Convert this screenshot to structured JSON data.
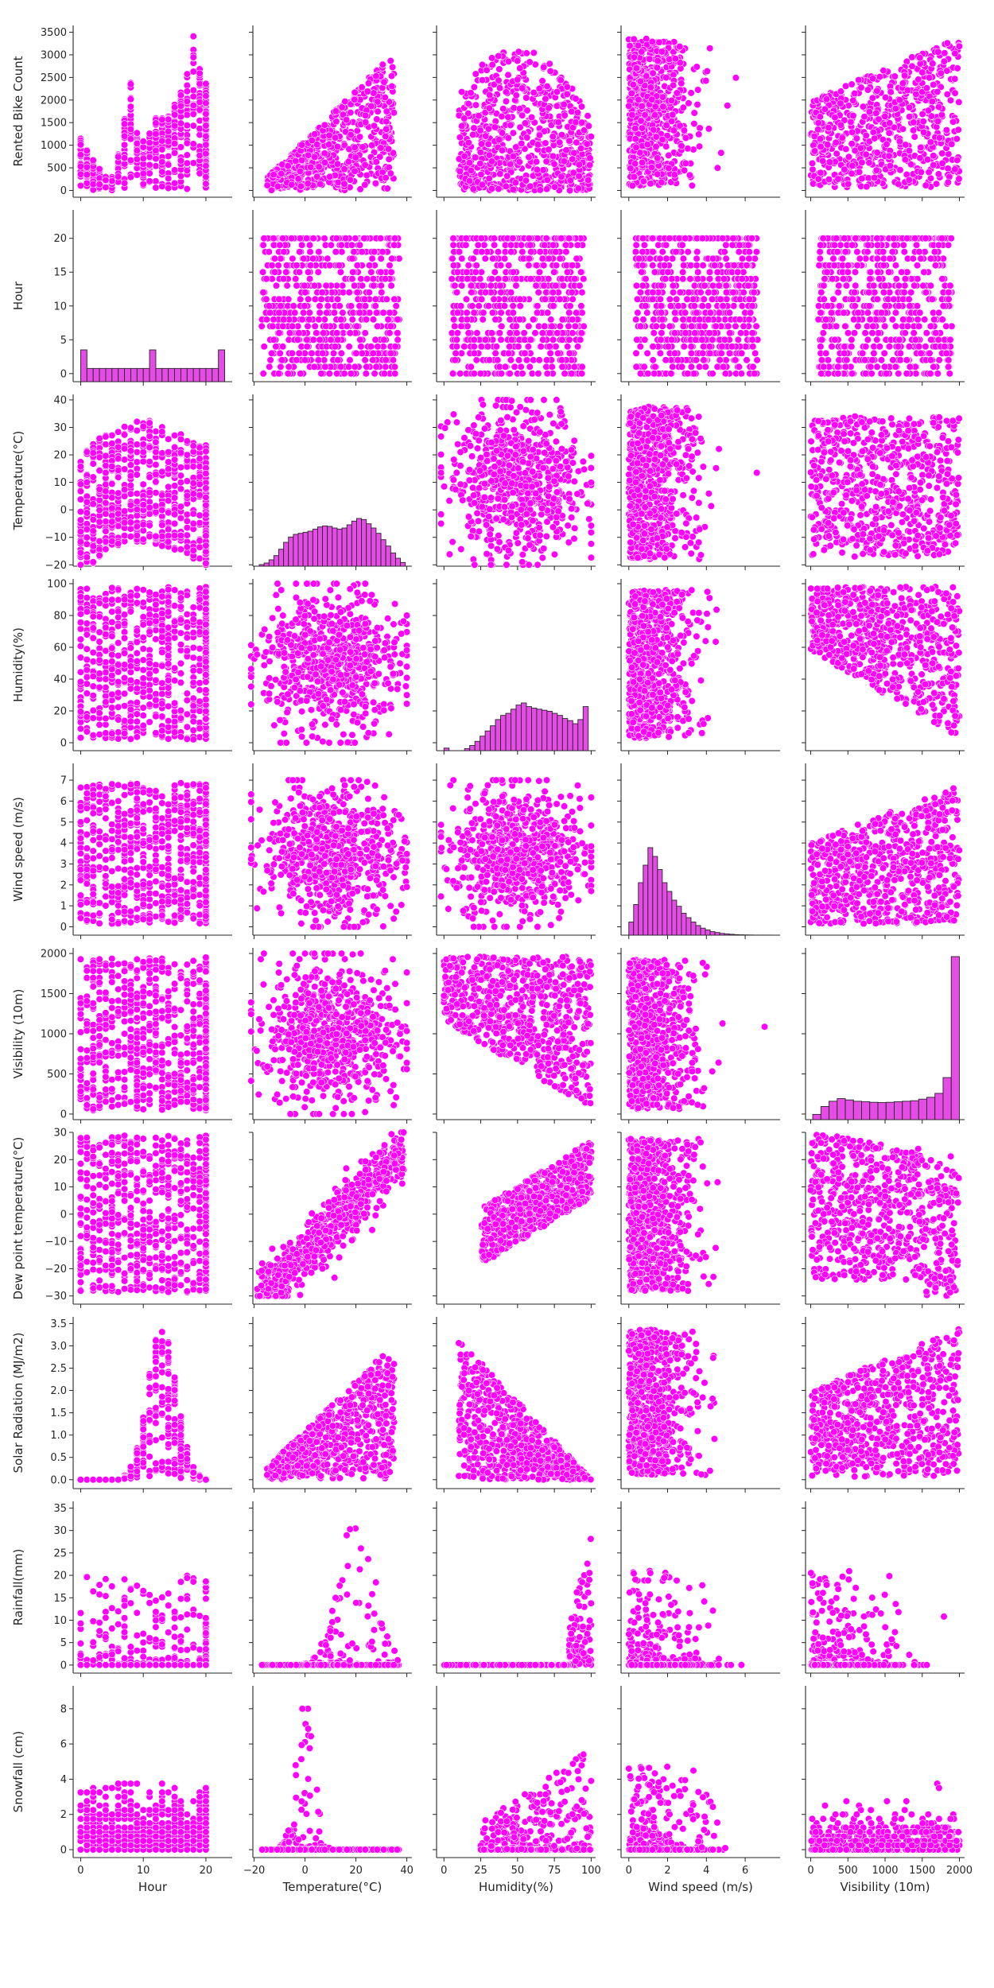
{
  "chart_data": {
    "type": "pairplot",
    "marker_color": "#ff00ff",
    "marker_edge_color": "#ffffff",
    "diagonal": "histogram",
    "grid": false,
    "row_variables": [
      "Rented Bike Count",
      "Hour",
      "Temperature(°C)",
      "Humidity(%)",
      "Wind speed (m/s)",
      "Visibility (10m)",
      "Dew point temperature(°C)",
      "Solar Radiation (MJ/m2)",
      "Rainfall(mm)",
      "Snowfall (cm)"
    ],
    "column_variables": [
      "Hour",
      "Temperature(°C)",
      "Humidity(%)",
      "Wind speed (m/s)",
      "Visibility (10m)"
    ],
    "axes": {
      "Rented Bike Count": {
        "range": [
          -150,
          3650
        ],
        "ticks": [
          0,
          500,
          1000,
          1500,
          2000,
          2500,
          3000,
          3500
        ]
      },
      "Hour": {
        "range": [
          -1.2,
          24.2
        ],
        "ticks": [
          0,
          5,
          10,
          15,
          20
        ]
      },
      "Temperature(°C)": {
        "range": [
          -20.5,
          42
        ],
        "ticks": [
          -20,
          -10,
          0,
          10,
          20,
          30,
          40
        ]
      },
      "Humidity(%)": {
        "range": [
          -5,
          103
        ],
        "ticks": [
          0,
          20,
          40,
          60,
          80,
          100
        ]
      },
      "Wind speed (m/s)": {
        "range": [
          -0.4,
          7.8
        ],
        "ticks": [
          0,
          1,
          2,
          3,
          4,
          5,
          6,
          7
        ]
      },
      "Visibility (10m)": {
        "range": [
          -70,
          2070
        ],
        "ticks": [
          0,
          500,
          1000,
          1500,
          2000
        ]
      },
      "Dew point temperature(°C)": {
        "range": [
          -33,
          30
        ],
        "ticks": [
          -30,
          -20,
          -10,
          0,
          10,
          20,
          30
        ]
      },
      "Solar Radiation (MJ/m2)": {
        "range": [
          -0.2,
          3.65
        ],
        "ticks": [
          0.0,
          0.5,
          1.0,
          1.5,
          2.0,
          2.5,
          3.0,
          3.5
        ]
      },
      "Rainfall(mm)": {
        "range": [
          -1.8,
          36.5
        ],
        "ticks": [
          0,
          5,
          10,
          15,
          20,
          25,
          30,
          35
        ]
      },
      "Snowfall (cm)": {
        "range": [
          -0.45,
          9.3
        ],
        "ticks": [
          0,
          2,
          4,
          6,
          8
        ]
      }
    },
    "x_ticks": {
      "Hour": [
        "0",
        "10",
        "20"
      ],
      "Temperature(°C)": [
        "−20",
        "0",
        "20",
        "40"
      ],
      "Humidity(%)": [
        "0",
        "25",
        "50",
        "75",
        "100"
      ],
      "Wind speed (m/s)": [
        "0",
        "2",
        "4",
        "6"
      ],
      "Visibility (10m)": [
        "0",
        "500",
        "1000",
        "1500",
        "2000"
      ]
    },
    "x_tick_values": {
      "Hour": [
        0,
        10,
        20
      ],
      "Temperature(°C)": [
        -20,
        0,
        20,
        40
      ],
      "Humidity(%)": [
        0,
        25,
        50,
        75,
        100
      ],
      "Wind speed (m/s)": [
        0,
        2,
        4,
        6
      ],
      "Visibility (10m)": [
        0,
        500,
        1000,
        1500,
        2000
      ]
    },
    "y_ticks": {
      "Rented Bike Count": [
        "0",
        "500",
        "1000",
        "1500",
        "2000",
        "2500",
        "3000",
        "3500"
      ],
      "Hour": [
        "0",
        "5",
        "10",
        "15",
        "20"
      ],
      "Temperature(°C)": [
        "−20",
        "−10",
        "0",
        "10",
        "20",
        "30",
        "40"
      ],
      "Humidity(%)": [
        "0",
        "20",
        "40",
        "60",
        "80",
        "100"
      ],
      "Wind speed (m/s)": [
        "0",
        "1",
        "2",
        "3",
        "4",
        "5",
        "6",
        "7"
      ],
      "Visibility (10m)": [
        "0",
        "500",
        "1000",
        "1500",
        "2000"
      ],
      "Dew point temperature(°C)": [
        "−30",
        "−20",
        "−10",
        "0",
        "10",
        "20",
        "30"
      ],
      "Solar Radiation (MJ/m2)": [
        "0.0",
        "0.5",
        "1.0",
        "1.5",
        "2.0",
        "2.5",
        "3.0",
        "3.5"
      ],
      "Rainfall(mm)": [
        "0",
        "5",
        "10",
        "15",
        "20",
        "25",
        "30",
        "35"
      ],
      "Snowfall (cm)": [
        "0",
        "2",
        "4",
        "6",
        "8"
      ]
    },
    "y_tick_values": {
      "Rented Bike Count": [
        0,
        500,
        1000,
        1500,
        2000,
        2500,
        3000,
        3500
      ],
      "Hour": [
        0,
        5,
        10,
        15,
        20
      ],
      "Temperature(°C)": [
        -20,
        -10,
        0,
        10,
        20,
        30,
        40
      ],
      "Humidity(%)": [
        0,
        20,
        40,
        60,
        80,
        100
      ],
      "Wind speed (m/s)": [
        0,
        1,
        2,
        3,
        4,
        5,
        6,
        7
      ],
      "Visibility (10m)": [
        0,
        500,
        1000,
        1500,
        2000
      ],
      "Dew point temperature(°C)": [
        -30,
        -20,
        -10,
        0,
        10,
        20,
        30
      ],
      "Solar Radiation (MJ/m2)": [
        0,
        0.5,
        1,
        1.5,
        2,
        2.5,
        3,
        3.5
      ],
      "Rainfall(mm)": [
        0,
        5,
        10,
        15,
        20,
        25,
        30,
        35
      ],
      "Snowfall (cm)": [
        0,
        2,
        4,
        6,
        8
      ]
    },
    "histograms": {
      "Hour": {
        "bins_start": 0,
        "bins_end": 23,
        "counts_relative": [
          2.4,
          1,
          1,
          1,
          1,
          1,
          1,
          1,
          1,
          1,
          1,
          2.4,
          1,
          1,
          1,
          1,
          1,
          1,
          1,
          1,
          1,
          1,
          2.4
        ]
      },
      "Temperature(°C)": {
        "bins_start": -18,
        "bins_end": 39.4,
        "counts_relative": [
          0.03,
          0.06,
          0.12,
          0.2,
          0.32,
          0.45,
          0.55,
          0.6,
          0.62,
          0.64,
          0.66,
          0.7,
          0.74,
          0.76,
          0.75,
          0.72,
          0.7,
          0.72,
          0.78,
          0.85,
          0.9,
          0.88,
          0.8,
          0.72,
          0.62,
          0.5,
          0.38,
          0.25,
          0.15,
          0.07
        ]
      },
      "Humidity(%)": {
        "bins_start": 0,
        "bins_end": 98,
        "counts_relative": [
          0.05,
          0,
          0,
          0,
          0.04,
          0.1,
          0.18,
          0.28,
          0.38,
          0.48,
          0.6,
          0.68,
          0.72,
          0.8,
          0.88,
          0.92,
          0.85,
          0.82,
          0.8,
          0.78,
          0.76,
          0.72,
          0.68,
          0.62,
          0.58,
          0.52,
          0.6,
          0.85
        ]
      },
      "Wind speed (m/s)": {
        "bins_start": 0,
        "bins_end": 7.4,
        "counts_relative": [
          0.15,
          0.35,
          0.6,
          0.8,
          1.0,
          0.9,
          0.75,
          0.6,
          0.5,
          0.4,
          0.33,
          0.25,
          0.2,
          0.15,
          0.11,
          0.08,
          0.06,
          0.04,
          0.03,
          0.02,
          0.015,
          0.01,
          0.006,
          0.004,
          0.003,
          0.002,
          0.001,
          0.001,
          0.001,
          0.001
        ]
      },
      "Visibility (10m)": {
        "bins_start": 27,
        "bins_end": 2000,
        "counts_relative": [
          0.02,
          0.05,
          0.07,
          0.08,
          0.075,
          0.07,
          0.068,
          0.066,
          0.065,
          0.066,
          0.068,
          0.07,
          0.072,
          0.078,
          0.085,
          0.1,
          0.16,
          0.62
        ]
      }
    },
    "scatter_shapes": {
      "Rented Bike Count": {
        "Hour": {
          "kind": "hourly_counts"
        },
        "Temperature(°C)": {
          "kind": "fan_up",
          "peak": 3556
        },
        "Humidity(%)": {
          "kind": "dome"
        },
        "Wind speed (m/s)": {
          "kind": "left_heavy"
        },
        "Visibility (10m)": {
          "kind": "rising_right"
        }
      },
      "Hour": {
        "Temperature(°C)": {
          "kind": "grid_rows"
        },
        "Humidity(%)": {
          "kind": "grid_rows"
        },
        "Wind speed (m/s)": {
          "kind": "grid_rows"
        },
        "Visibility (10m)": {
          "kind": "grid_rows"
        }
      },
      "Temperature(°C)": {
        "Hour": {
          "kind": "wave_band"
        },
        "Humidity(%)": {
          "kind": "blob"
        },
        "Wind speed (m/s)": {
          "kind": "left_heavy"
        },
        "Visibility (10m)": {
          "kind": "blob_right"
        }
      },
      "Humidity(%)": {
        "Hour": {
          "kind": "band"
        },
        "Temperature(°C)": {
          "kind": "blob"
        },
        "Wind speed (m/s)": {
          "kind": "left_heavy"
        },
        "Visibility (10m)": {
          "kind": "falling"
        }
      },
      "Wind speed (m/s)": {
        "Hour": {
          "kind": "band"
        },
        "Temperature(°C)": {
          "kind": "blob"
        },
        "Humidity(%)": {
          "kind": "blob"
        },
        "Visibility (10m)": {
          "kind": "rising_right"
        }
      },
      "Visibility (10m)": {
        "Hour": {
          "kind": "band"
        },
        "Temperature(°C)": {
          "kind": "blob"
        },
        "Humidity(%)": {
          "kind": "falling"
        },
        "Wind speed (m/s)": {
          "kind": "left_heavy"
        }
      },
      "Dew point temperature(°C)": {
        "Hour": {
          "kind": "band"
        },
        "Temperature(°C)": {
          "kind": "diagonal"
        },
        "Humidity(%)": {
          "kind": "rising"
        },
        "Wind speed (m/s)": {
          "kind": "left_heavy"
        },
        "Visibility (10m)": {
          "kind": "falling_right"
        }
      },
      "Solar Radiation (MJ/m2)": {
        "Hour": {
          "kind": "bell"
        },
        "Temperature(°C)": {
          "kind": "fan_up"
        },
        "Humidity(%)": {
          "kind": "falling_from_left"
        },
        "Wind speed (m/s)": {
          "kind": "left_heavy"
        },
        "Visibility (10m)": {
          "kind": "rising_right"
        }
      },
      "Rainfall(mm)": {
        "Hour": {
          "kind": "sparse_low"
        },
        "Temperature(°C)": {
          "kind": "spike_mid"
        },
        "Humidity(%)": {
          "kind": "rising_steep_end"
        },
        "Wind speed (m/s)": {
          "kind": "left_sparse"
        },
        "Visibility (10m)": {
          "kind": "left_sparse"
        }
      },
      "Snowfall (cm)": {
        "Hour": {
          "kind": "rows"
        },
        "Temperature(°C)": {
          "kind": "spike_left"
        },
        "Humidity(%)": {
          "kind": "rising_right_sparse"
        },
        "Wind speed (m/s)": {
          "kind": "left_sparse"
        },
        "Visibility (10m)": {
          "kind": "rows_sparse"
        }
      }
    }
  }
}
